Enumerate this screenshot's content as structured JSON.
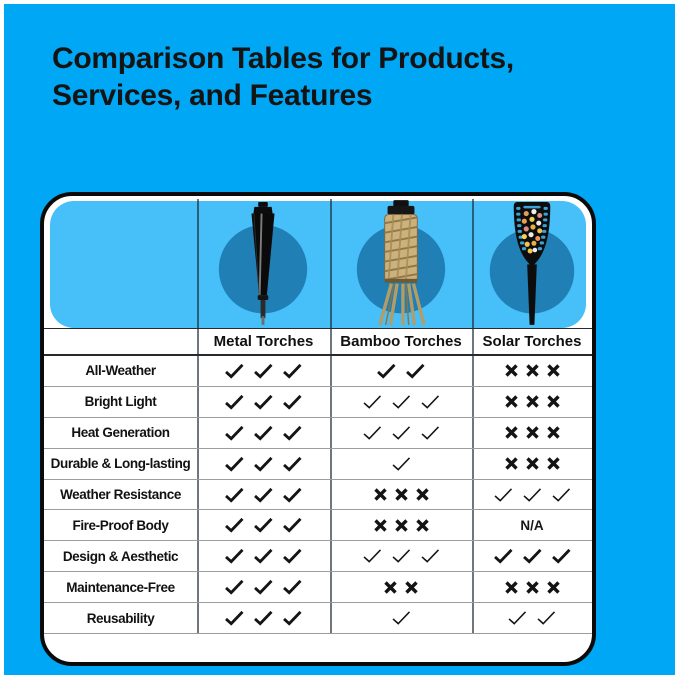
{
  "title": {
    "line1": "Comparison Tables for Products,",
    "line2": "Services, and Features"
  },
  "table": {
    "columns": [
      {
        "label": "Metal Torches",
        "icon": "metal-torch-image"
      },
      {
        "label": "Bamboo Torches",
        "icon": "bamboo-torch-image"
      },
      {
        "label": "Solar Torches",
        "icon": "solar-torch-image"
      }
    ],
    "rows": [
      {
        "label": "All-Weather",
        "cells": [
          {
            "mark": "check",
            "count": 3,
            "weight": "bold"
          },
          {
            "mark": "check",
            "count": 2,
            "weight": "bold"
          },
          {
            "mark": "cross",
            "count": 3,
            "weight": "bold"
          }
        ]
      },
      {
        "label": "Bright Light",
        "cells": [
          {
            "mark": "check",
            "count": 3,
            "weight": "bold"
          },
          {
            "mark": "check",
            "count": 3,
            "weight": "light"
          },
          {
            "mark": "cross",
            "count": 3,
            "weight": "bold"
          }
        ]
      },
      {
        "label": "Heat Generation",
        "cells": [
          {
            "mark": "check",
            "count": 3,
            "weight": "bold"
          },
          {
            "mark": "check",
            "count": 3,
            "weight": "light"
          },
          {
            "mark": "cross",
            "count": 3,
            "weight": "bold"
          }
        ]
      },
      {
        "label": "Durable & Long-lasting",
        "cells": [
          {
            "mark": "check",
            "count": 3,
            "weight": "bold"
          },
          {
            "mark": "check",
            "count": 1,
            "weight": "light"
          },
          {
            "mark": "cross",
            "count": 3,
            "weight": "bold"
          }
        ]
      },
      {
        "label": "Weather Resistance",
        "cells": [
          {
            "mark": "check",
            "count": 3,
            "weight": "bold"
          },
          {
            "mark": "cross",
            "count": 3,
            "weight": "bold"
          },
          {
            "mark": "check",
            "count": 3,
            "weight": "light"
          }
        ]
      },
      {
        "label": "Fire-Proof Body",
        "cells": [
          {
            "mark": "check",
            "count": 3,
            "weight": "bold"
          },
          {
            "mark": "cross",
            "count": 3,
            "weight": "bold"
          },
          {
            "mark": "na",
            "count": 0,
            "weight": "bold",
            "text": "N/A"
          }
        ]
      },
      {
        "label": "Design & Aesthetic",
        "cells": [
          {
            "mark": "check",
            "count": 3,
            "weight": "bold"
          },
          {
            "mark": "check",
            "count": 3,
            "weight": "light"
          },
          {
            "mark": "check",
            "count": 3,
            "weight": "bold"
          }
        ]
      },
      {
        "label": "Maintenance-Free",
        "cells": [
          {
            "mark": "check",
            "count": 3,
            "weight": "bold"
          },
          {
            "mark": "cross",
            "count": 2,
            "weight": "bold"
          },
          {
            "mark": "cross",
            "count": 3,
            "weight": "bold"
          }
        ]
      },
      {
        "label": "Reusability",
        "cells": [
          {
            "mark": "check",
            "count": 3,
            "weight": "bold"
          },
          {
            "mark": "check",
            "count": 1,
            "weight": "light"
          },
          {
            "mark": "check",
            "count": 2,
            "weight": "light"
          }
        ]
      }
    ]
  },
  "colors": {
    "page_background": "#00A7F5",
    "panel_blue": "#47BFF8",
    "circle_blue": "#207FB4",
    "card_background": "#FFFFFF",
    "card_border": "#0A0A0A",
    "grid_line": "#9D9D9D",
    "grid_line_strong": "#2A2A2A",
    "text": "#141414"
  }
}
